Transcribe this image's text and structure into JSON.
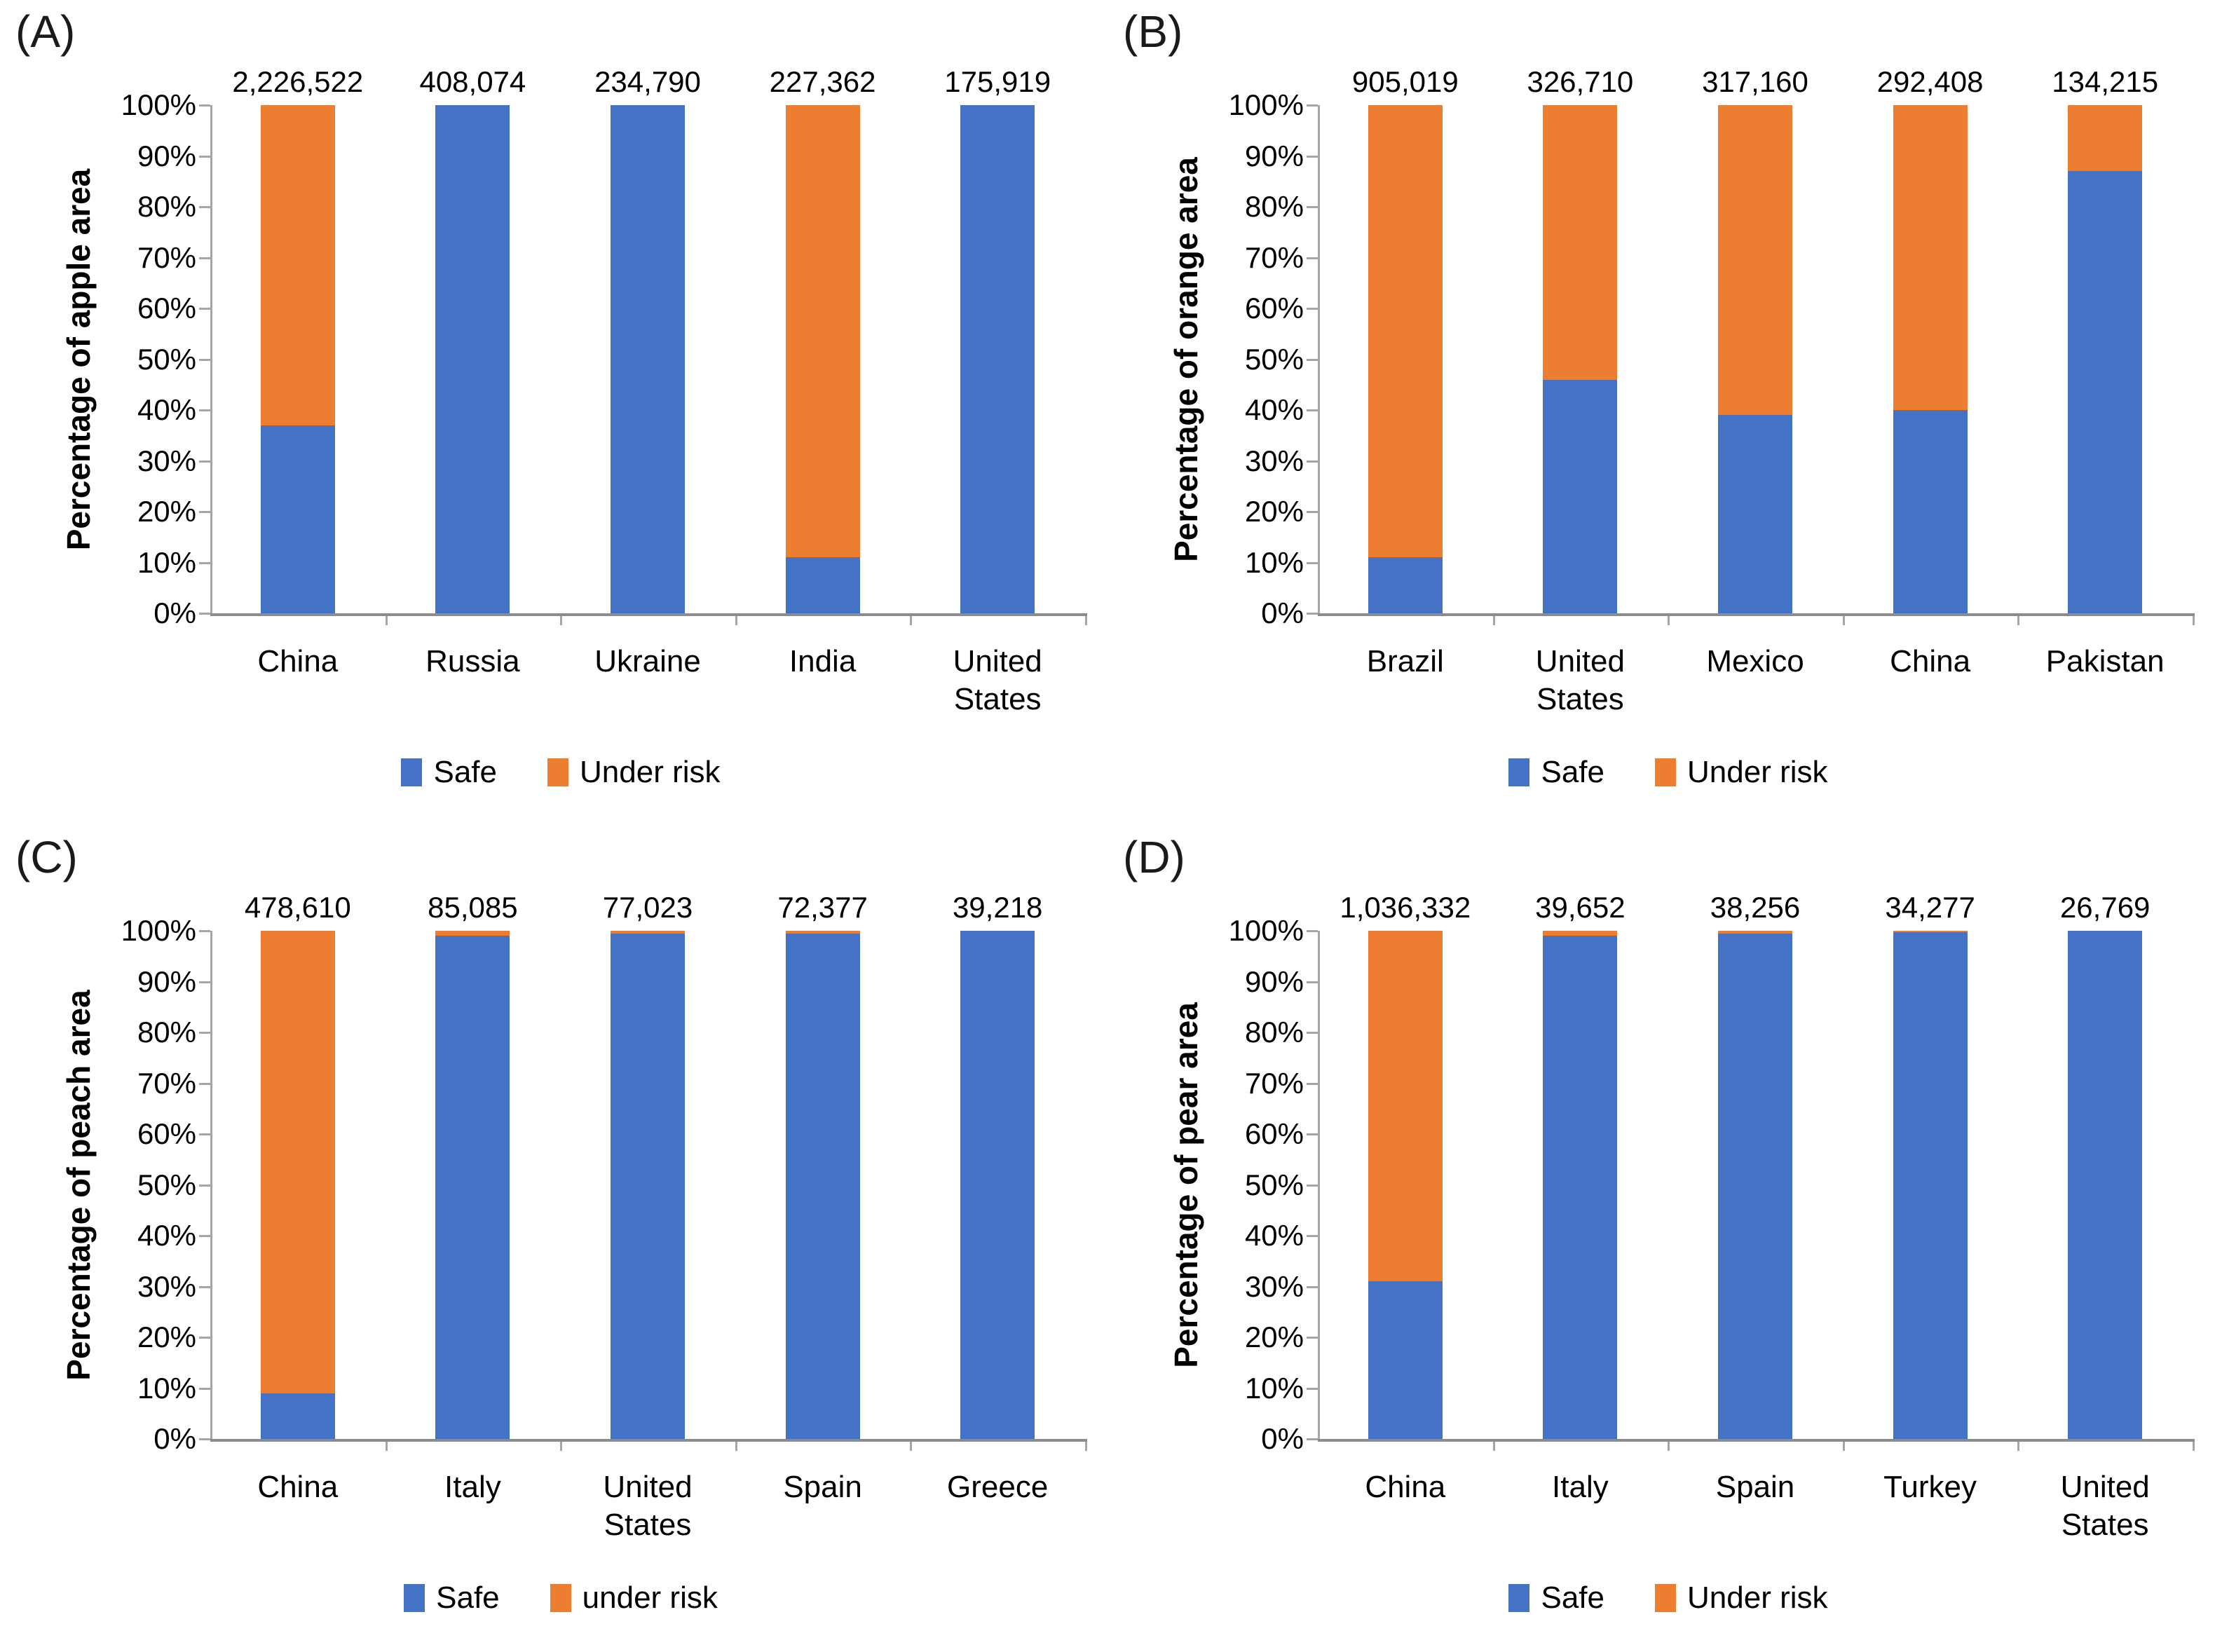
{
  "figure_title": "",
  "accent_colors": {
    "safe_blue": "#4472C4",
    "risk_orange": "#ED7D31",
    "axis_gray": "#A6A6A6",
    "baseline_gray": "#8C8C8C"
  },
  "ytick_labels": [
    "100%",
    "90%",
    "80%",
    "70%",
    "60%",
    "50%",
    "40%",
    "30%",
    "20%",
    "10%",
    "0%"
  ],
  "chart_data": [
    {
      "type": "bar",
      "stacked": true,
      "panel_letter": "(A)",
      "ylabel": "Percentage of apple area",
      "xlabel": "",
      "ylim": [
        0,
        100
      ],
      "ytick_step": 10,
      "grid": false,
      "legend_position": "bottom",
      "categories": [
        "China",
        "Russia",
        "Ukraine",
        "India",
        "United States"
      ],
      "totals": [
        "2,226,522",
        "408,074",
        "234,790",
        "227,362",
        "175,919"
      ],
      "series": [
        {
          "name": "Safe",
          "color": "#4472C4",
          "values": [
            37,
            100,
            100,
            11,
            100
          ]
        },
        {
          "name": "Under risk",
          "color": "#ED7D31",
          "values": [
            63,
            0,
            0,
            89,
            0
          ]
        }
      ],
      "legend": [
        "Safe",
        "Under risk"
      ]
    },
    {
      "type": "bar",
      "stacked": true,
      "panel_letter": "(B)",
      "ylabel": "Percentage of orange area",
      "xlabel": "",
      "ylim": [
        0,
        100
      ],
      "ytick_step": 10,
      "grid": false,
      "legend_position": "bottom",
      "categories": [
        "Brazil",
        "United States",
        "Mexico",
        "China",
        "Pakistan"
      ],
      "totals": [
        "905,019",
        "326,710",
        "317,160",
        "292,408",
        "134,215"
      ],
      "series": [
        {
          "name": "Safe",
          "color": "#4472C4",
          "values": [
            11,
            46,
            39,
            40,
            87
          ]
        },
        {
          "name": "Under risk",
          "color": "#ED7D31",
          "values": [
            89,
            54,
            61,
            60,
            13
          ]
        }
      ],
      "legend": [
        "Safe",
        "Under risk"
      ]
    },
    {
      "type": "bar",
      "stacked": true,
      "panel_letter": "(C)",
      "ylabel": "Percentage of peach area",
      "xlabel": "",
      "ylim": [
        0,
        100
      ],
      "ytick_step": 10,
      "grid": false,
      "legend_position": "bottom",
      "categories": [
        "China",
        "Italy",
        "United States",
        "Spain",
        "Greece"
      ],
      "totals": [
        "478,610",
        "85,085",
        "77,023",
        "72,377",
        "39,218"
      ],
      "series": [
        {
          "name": "Safe",
          "color": "#4472C4",
          "values": [
            9,
            99,
            99.5,
            99.5,
            100
          ]
        },
        {
          "name": "under risk",
          "color": "#ED7D31",
          "values": [
            91,
            1,
            0.5,
            0.5,
            0
          ]
        }
      ],
      "legend": [
        "Safe",
        "under risk"
      ]
    },
    {
      "type": "bar",
      "stacked": true,
      "panel_letter": "(D)",
      "ylabel": "Percentage of pear area",
      "xlabel": "",
      "ylim": [
        0,
        100
      ],
      "ytick_step": 10,
      "grid": false,
      "legend_position": "bottom",
      "categories": [
        "China",
        "Italy",
        "Spain",
        "Turkey",
        "United States"
      ],
      "totals": [
        "1,036,332",
        "39,652",
        "38,256",
        "34,277",
        "26,769"
      ],
      "series": [
        {
          "name": "Safe",
          "color": "#4472C4",
          "values": [
            31,
            99,
            99.5,
            99.7,
            100
          ]
        },
        {
          "name": "Under risk",
          "color": "#ED7D31",
          "values": [
            69,
            1,
            0.5,
            0.3,
            0
          ]
        }
      ],
      "legend": [
        "Under risk"
      ],
      "legend_full": [
        "Safe",
        "Under risk"
      ]
    }
  ]
}
